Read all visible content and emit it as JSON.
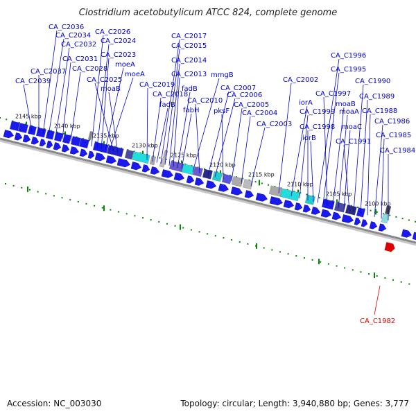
{
  "title": "Clostridium acetobutylicum ATCC 824, complete genome",
  "footer": {
    "accession": "Accession: NC_003030",
    "summary": "Topology: circular; Length: 3,940,880 bp; Genes: 3,777"
  },
  "colors": {
    "label": "#0000cc",
    "highlight": "#dd0000",
    "gene_forward": "#1a1aee",
    "backbone": "#888888",
    "tick": "#008800"
  },
  "kbp_ticks": [
    "2145 kbp",
    "2140 kbp",
    "2135 kbp",
    "2130 kbp",
    "2125 kbp",
    "2120 kbp",
    "2115 kbp",
    "2110 kbp",
    "2105 kbp",
    "2100 kbp"
  ],
  "gene_labels": [
    "CA_C2036",
    "CA_C2034",
    "CA_C2032",
    "CA_C2031",
    "CA_C2028",
    "CA_C2037",
    "CA_C2039",
    "CA_C2026",
    "CA_C2024",
    "CA_C2023",
    "moeA",
    "moeA",
    "CA_C2025",
    "moaB",
    "CA_C2019",
    "CA_C2018",
    "fadB",
    "CA_C2017",
    "CA_C2015",
    "CA_C2014",
    "CA_C2013",
    "fadB",
    "fabH",
    "mmgB",
    "CA_C2010",
    "CA_C2007",
    "CA_C2006",
    "pksF",
    "CA_C2005",
    "CA_C2004",
    "CA_C2003",
    "CA_C2002",
    "iorA",
    "CA_C1999",
    "CA_C1998",
    "iorB",
    "CA_C1996",
    "CA_C1995",
    "CA_C1997",
    "moaB",
    "moaA",
    "moaC",
    "CA_C1991",
    "CA_C1990",
    "CA_C1989",
    "CA_C1988",
    "CA_C1986",
    "CA_C1985",
    "CA_C1984"
  ],
  "highlight_label": "CA_C1982"
}
